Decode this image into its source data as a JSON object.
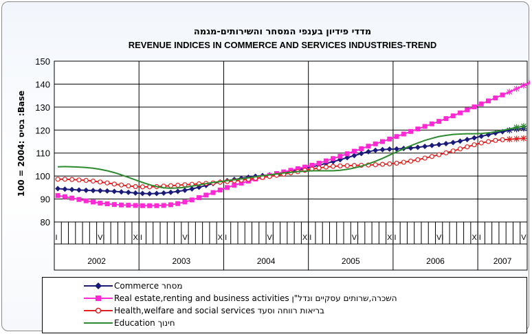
{
  "chart_data": {
    "type": "line",
    "title": "מדדי פידיון בענפי המסחר והשירותים-מגמה",
    "subtitle": "REVENUE INDICES IN COMMERCE AND SERVICES INDUSTRIES-TREND",
    "ylabel": "100 = 2004: בסיס :Base",
    "ylim": [
      80,
      150
    ],
    "yticks": [
      80,
      90,
      100,
      110,
      120,
      130,
      140,
      150
    ],
    "grid": true,
    "legend_position": "bottom",
    "x_month_labels": [
      {
        "index": 0,
        "label": "I"
      },
      {
        "index": 6,
        "label": "VI"
      },
      {
        "index": 11,
        "label": "XII"
      },
      {
        "index": 18,
        "label": "VI"
      },
      {
        "index": 23,
        "label": "XII"
      },
      {
        "index": 30,
        "label": "VI"
      },
      {
        "index": 35,
        "label": "XII"
      },
      {
        "index": 42,
        "label": "VI"
      },
      {
        "index": 47,
        "label": "XII"
      },
      {
        "index": 54,
        "label": "VI"
      },
      {
        "index": 59,
        "label": "XII"
      },
      {
        "index": 66,
        "label": "VI"
      },
      {
        "index": 71,
        "label": "XII"
      }
    ],
    "years": [
      "2002",
      "2003",
      "2004",
      "2005",
      "2006",
      "2007"
    ],
    "series": [
      {
        "name": "Commerce  מסחר",
        "color": "#1a1a7a",
        "marker": "diamond",
        "values": [
          94.5,
          94.3,
          94.1,
          93.9,
          93.8,
          93.7,
          93.6,
          93.5,
          93.3,
          93.1,
          92.9,
          92.6,
          92.4,
          92.3,
          92.4,
          92.6,
          92.9,
          93.3,
          93.8,
          94.4,
          95.1,
          95.9,
          96.7,
          97.4,
          98.0,
          98.5,
          99.0,
          99.5,
          99.9,
          100.2,
          100.5,
          100.9,
          101.4,
          102.0,
          102.6,
          103.3,
          104.0,
          104.7,
          105.5,
          106.3,
          107.1,
          108.0,
          108.9,
          109.8,
          110.6,
          111.2,
          111.5,
          111.7,
          111.8,
          112.0,
          112.2,
          112.5,
          112.9,
          113.3,
          113.7,
          114.1,
          114.6,
          115.2,
          115.9,
          116.6,
          117.3,
          118.0,
          118.7,
          119.3,
          119.9,
          120.4,
          120.7
        ]
      },
      {
        "name": "Real estate,renting and business activities השכרה,שרותים עסקיים ונדל\"ן",
        "color": "#ff2ad4",
        "marker": "square",
        "values": [
          91.5,
          91.0,
          90.4,
          89.8,
          89.2,
          88.7,
          88.2,
          87.9,
          87.6,
          87.4,
          87.3,
          87.2,
          87.1,
          87.1,
          87.1,
          87.2,
          87.5,
          88.0,
          88.7,
          89.6,
          90.6,
          91.7,
          92.8,
          93.9,
          95.0,
          96.0,
          96.9,
          97.8,
          98.7,
          99.5,
          100.3,
          101.1,
          101.8,
          102.5,
          103.2,
          103.9,
          104.7,
          105.6,
          106.6,
          107.6,
          108.6,
          109.7,
          110.8,
          111.9,
          113.0,
          114.0,
          115.0,
          116.1,
          117.2,
          118.3,
          119.4,
          120.5,
          121.6,
          122.7,
          123.8,
          125.0,
          126.2,
          127.5,
          128.8,
          130.1,
          131.4,
          132.7,
          134.0,
          135.3,
          136.6,
          138.0,
          139.4,
          140.7
        ]
      },
      {
        "name": "Health,welfare and social services  בריאות רווחה וסעד",
        "color": "#e02020",
        "marker": "circle",
        "values": [
          98.6,
          98.6,
          98.5,
          98.3,
          98.1,
          97.8,
          97.4,
          97.0,
          96.5,
          96.1,
          95.7,
          95.4,
          95.3,
          95.3,
          95.4,
          95.6,
          95.8,
          96.0,
          96.2,
          96.4,
          96.6,
          96.8,
          97.0,
          97.3,
          97.6,
          97.9,
          98.2,
          98.6,
          99.0,
          99.4,
          99.8,
          100.3,
          100.8,
          101.4,
          101.9,
          102.5,
          103.0,
          103.5,
          103.9,
          104.2,
          104.4,
          104.5,
          104.6,
          104.7,
          104.8,
          104.9,
          105.1,
          105.3,
          105.6,
          106.0,
          106.5,
          107.1,
          107.8,
          108.5,
          109.3,
          110.1,
          110.9,
          111.8,
          112.7,
          113.6,
          114.4,
          115.0,
          115.5,
          115.8,
          116.0,
          116.2,
          116.4
        ]
      },
      {
        "name": "Education  חינוך",
        "color": "#2c8a2c",
        "marker": "none",
        "values": [
          104.0,
          104.1,
          104.0,
          103.9,
          103.7,
          103.4,
          102.9,
          102.3,
          101.5,
          100.5,
          99.4,
          98.3,
          97.2,
          96.2,
          95.4,
          94.9,
          94.7,
          94.8,
          95.1,
          95.6,
          96.1,
          96.7,
          97.2,
          97.6,
          98.0,
          98.4,
          98.8,
          99.2,
          99.7,
          100.1,
          100.5,
          100.9,
          101.3,
          101.6,
          101.9,
          102.1,
          102.3,
          102.3,
          102.3,
          102.3,
          102.5,
          102.9,
          103.5,
          104.3,
          105.3,
          106.4,
          107.7,
          109.1,
          110.5,
          111.9,
          113.2,
          114.4,
          115.5,
          116.4,
          117.2,
          117.7,
          118.1,
          118.3,
          118.4,
          118.4,
          118.5,
          118.8,
          119.3,
          119.9,
          120.5,
          121.2,
          121.7
        ]
      }
    ]
  }
}
